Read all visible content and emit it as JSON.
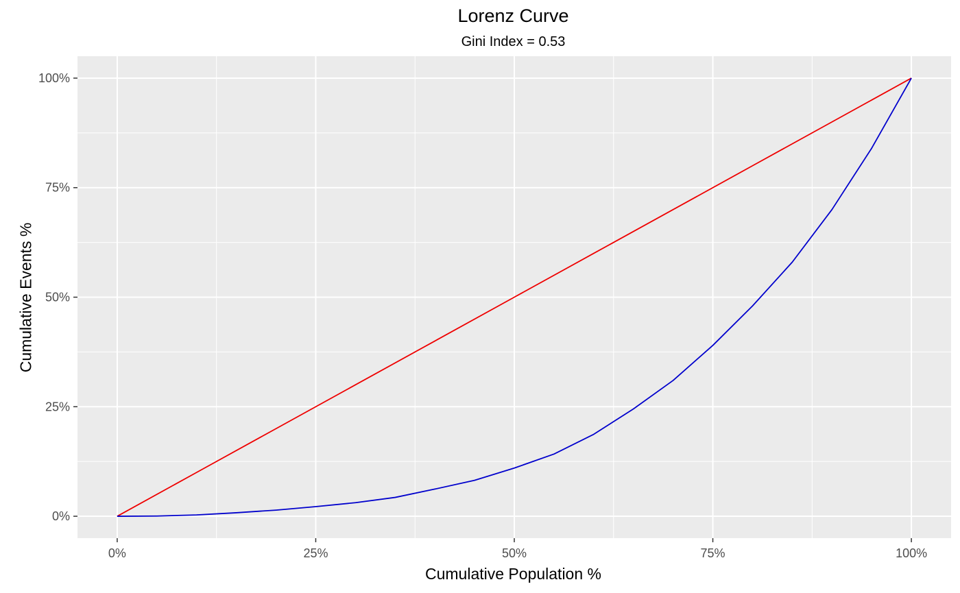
{
  "chart_data": {
    "type": "line",
    "title": "Lorenz Curve",
    "subtitle": "Gini Index = 0.53",
    "xlabel": "Cumulative Population %",
    "ylabel": "Cumulative Events %",
    "xlim": [
      -0.05,
      1.05
    ],
    "ylim": [
      -0.05,
      1.05
    ],
    "x_ticks": [
      0,
      0.25,
      0.5,
      0.75,
      1
    ],
    "x_tick_labels": [
      "0%",
      "25%",
      "50%",
      "75%",
      "100%"
    ],
    "y_ticks": [
      0,
      0.25,
      0.5,
      0.75,
      1
    ],
    "y_tick_labels": [
      "0%",
      "25%",
      "50%",
      "75%",
      "100%"
    ],
    "grid": true,
    "background": "#ebebeb",
    "series": [
      {
        "color": "#ee0000",
        "x": [
          0,
          0.1,
          0.2,
          0.3,
          0.4,
          0.5,
          0.6,
          0.7,
          0.8,
          0.9,
          1
        ],
        "y": [
          0,
          0.1,
          0.2,
          0.3,
          0.4,
          0.5,
          0.6,
          0.7,
          0.8,
          0.9,
          1
        ]
      },
      {
        "color": "#0000cc",
        "x": [
          0,
          0.05,
          0.1,
          0.15,
          0.2,
          0.25,
          0.3,
          0.35,
          0.4,
          0.45,
          0.5,
          0.55,
          0.6,
          0.65,
          0.7,
          0.75,
          0.8,
          0.85,
          0.9,
          0.95,
          1
        ],
        "y": [
          0,
          0.0005,
          0.003,
          0.008,
          0.014,
          0.022,
          0.031,
          0.043,
          0.062,
          0.082,
          0.11,
          0.142,
          0.187,
          0.245,
          0.31,
          0.39,
          0.48,
          0.58,
          0.7,
          0.84,
          1
        ]
      }
    ]
  }
}
